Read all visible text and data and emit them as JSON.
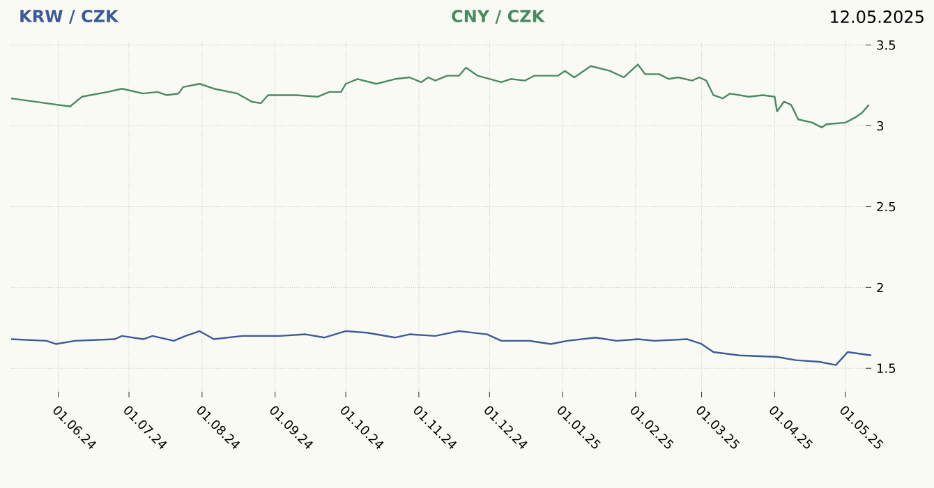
{
  "chart_data": {
    "type": "line",
    "legend": "top",
    "grid": true,
    "line_style": "solid",
    "marker": "none",
    "annotations": [
      "12.05.2025"
    ],
    "xlim": [
      "2024-05-12",
      "2025-05-12"
    ],
    "xticks": [
      {
        "value": "2024-06-01",
        "label": "01.06.24"
      },
      {
        "value": "2024-07-01",
        "label": "01.07.24"
      },
      {
        "value": "2024-08-01",
        "label": "01.08.24"
      },
      {
        "value": "2024-09-01",
        "label": "01.09.24"
      },
      {
        "value": "2024-10-01",
        "label": "01.10.24"
      },
      {
        "value": "2024-11-01",
        "label": "01.11.24"
      },
      {
        "value": "2024-12-01",
        "label": "01.12.24"
      },
      {
        "value": "2025-01-01",
        "label": "01.01.25"
      },
      {
        "value": "2025-02-01",
        "label": "01.02.25"
      },
      {
        "value": "2025-03-01",
        "label": "01.03.25"
      },
      {
        "value": "2025-04-01",
        "label": "01.04.25"
      },
      {
        "value": "2025-05-01",
        "label": "01.05.25"
      }
    ],
    "ylim": [
      1.32,
      3.52
    ],
    "yticks": [
      1.5,
      2,
      2.5,
      3,
      3.5
    ],
    "series": [
      {
        "name": "KRW / CZK",
        "color": "#3d5a98",
        "x": [
          "2024-05-12",
          "2024-05-27",
          "2024-05-31",
          "2024-06-08",
          "2024-06-25",
          "2024-06-28",
          "2024-07-07",
          "2024-07-11",
          "2024-07-20",
          "2024-07-25",
          "2024-07-31",
          "2024-08-06",
          "2024-08-18",
          "2024-09-03",
          "2024-09-14",
          "2024-09-22",
          "2024-10-01",
          "2024-10-10",
          "2024-10-22",
          "2024-10-28",
          "2024-11-08",
          "2024-11-18",
          "2024-11-24",
          "2024-11-30",
          "2024-12-06",
          "2024-12-18",
          "2024-12-27",
          "2025-01-03",
          "2025-01-15",
          "2025-01-24",
          "2025-02-02",
          "2025-02-09",
          "2025-02-23",
          "2025-03-01",
          "2025-03-06",
          "2025-03-17",
          "2025-04-02",
          "2025-04-10",
          "2025-04-20",
          "2025-04-27",
          "2025-05-02",
          "2025-05-12"
        ],
        "values": [
          1.68,
          1.67,
          1.65,
          1.67,
          1.68,
          1.7,
          1.68,
          1.7,
          1.67,
          1.7,
          1.73,
          1.68,
          1.7,
          1.7,
          1.71,
          1.69,
          1.73,
          1.72,
          1.69,
          1.71,
          1.7,
          1.73,
          1.72,
          1.71,
          1.67,
          1.67,
          1.65,
          1.67,
          1.69,
          1.67,
          1.68,
          1.67,
          1.68,
          1.65,
          1.6,
          1.58,
          1.57,
          1.55,
          1.54,
          1.52,
          1.6,
          1.58
        ]
      },
      {
        "name": "CNY / CZK",
        "color": "#4a8a62",
        "x": [
          "2024-05-12",
          "2024-05-27",
          "2024-06-06",
          "2024-06-11",
          "2024-06-22",
          "2024-06-28",
          "2024-07-07",
          "2024-07-13",
          "2024-07-17",
          "2024-07-22",
          "2024-07-24",
          "2024-07-31",
          "2024-08-06",
          "2024-08-16",
          "2024-08-22",
          "2024-08-26",
          "2024-08-29",
          "2024-09-10",
          "2024-09-19",
          "2024-09-24",
          "2024-09-29",
          "2024-10-01",
          "2024-10-06",
          "2024-10-14",
          "2024-10-22",
          "2024-10-28",
          "2024-11-02",
          "2024-11-05",
          "2024-11-08",
          "2024-11-13",
          "2024-11-18",
          "2024-11-21",
          "2024-11-26",
          "2024-12-06",
          "2024-12-10",
          "2024-12-16",
          "2024-12-20",
          "2024-12-30",
          "2025-01-02",
          "2025-01-06",
          "2025-01-13",
          "2025-01-21",
          "2025-01-27",
          "2025-02-02",
          "2025-02-05",
          "2025-02-11",
          "2025-02-15",
          "2025-02-19",
          "2025-02-25",
          "2025-02-28",
          "2025-03-03",
          "2025-03-06",
          "2025-03-10",
          "2025-03-13",
          "2025-03-21",
          "2025-03-27",
          "2025-04-01",
          "2025-04-02",
          "2025-04-05",
          "2025-04-08",
          "2025-04-11",
          "2025-04-17",
          "2025-04-21",
          "2025-04-23",
          "2025-05-01",
          "2025-05-05",
          "2025-05-08",
          "2025-05-11"
        ],
        "values": [
          3.17,
          3.14,
          3.12,
          3.18,
          3.21,
          3.23,
          3.2,
          3.21,
          3.19,
          3.2,
          3.24,
          3.26,
          3.23,
          3.2,
          3.15,
          3.14,
          3.19,
          3.19,
          3.18,
          3.21,
          3.21,
          3.26,
          3.29,
          3.26,
          3.29,
          3.3,
          3.27,
          3.3,
          3.28,
          3.31,
          3.31,
          3.36,
          3.31,
          3.27,
          3.29,
          3.28,
          3.31,
          3.31,
          3.34,
          3.3,
          3.37,
          3.34,
          3.3,
          3.38,
          3.32,
          3.32,
          3.29,
          3.3,
          3.28,
          3.3,
          3.28,
          3.19,
          3.17,
          3.2,
          3.18,
          3.19,
          3.18,
          3.09,
          3.15,
          3.13,
          3.04,
          3.02,
          2.99,
          3.01,
          3.02,
          3.05,
          3.08,
          3.13
        ]
      }
    ]
  }
}
